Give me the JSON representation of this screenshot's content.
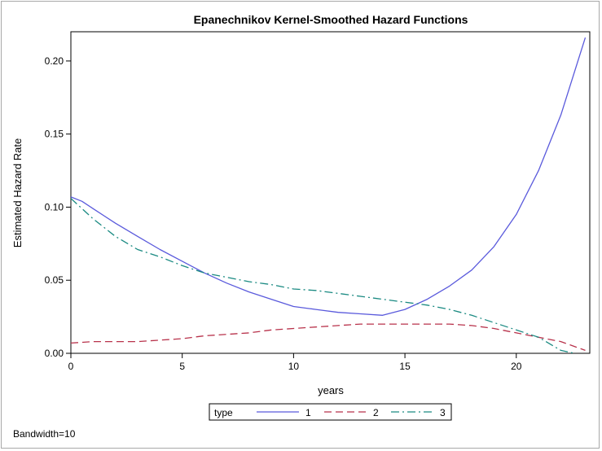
{
  "chart_data": {
    "type": "line",
    "title": "Epanechnikov Kernel-Smoothed Hazard Functions",
    "xlabel": "years",
    "ylabel": "Estimated Hazard Rate",
    "xlim": [
      0,
      23.3
    ],
    "ylim": [
      0,
      0.22
    ],
    "xticks": [
      0,
      5,
      10,
      15,
      20
    ],
    "xtick_labels": [
      "0",
      "5",
      "10",
      "15",
      "20"
    ],
    "yticks": [
      0,
      0.05,
      0.1,
      0.15,
      0.2
    ],
    "ytick_labels": [
      "0.00",
      "0.05",
      "0.10",
      "0.15",
      "0.20"
    ],
    "grid": false,
    "legend_position": "bottom-center",
    "legend_title": "type",
    "series": [
      {
        "name": "1",
        "color": "#5a5adc",
        "style": "solid",
        "x": [
          0,
          0.5,
          1,
          2,
          3,
          4,
          5,
          6,
          7,
          8,
          9,
          10,
          11,
          12,
          13,
          14,
          15,
          16,
          17,
          18,
          19,
          20,
          21,
          22,
          23.1
        ],
        "y": [
          0.107,
          0.104,
          0.099,
          0.089,
          0.08,
          0.071,
          0.063,
          0.055,
          0.048,
          0.042,
          0.037,
          0.032,
          0.03,
          0.028,
          0.027,
          0.026,
          0.03,
          0.037,
          0.046,
          0.057,
          0.073,
          0.095,
          0.125,
          0.163,
          0.216
        ]
      },
      {
        "name": "2",
        "color": "#b8324b",
        "style": "dashed",
        "x": [
          0,
          1,
          2,
          3,
          4,
          5,
          6,
          7,
          8,
          9,
          10,
          11,
          12,
          13,
          14,
          15,
          16,
          17,
          18,
          19,
          20,
          21,
          22,
          23.1
        ],
        "y": [
          0.007,
          0.008,
          0.008,
          0.008,
          0.009,
          0.01,
          0.012,
          0.013,
          0.014,
          0.016,
          0.017,
          0.018,
          0.019,
          0.02,
          0.02,
          0.02,
          0.02,
          0.02,
          0.019,
          0.017,
          0.014,
          0.011,
          0.008,
          0.002
        ]
      },
      {
        "name": "3",
        "color": "#1a8a82",
        "style": "dashdot",
        "x": [
          0,
          0.5,
          1,
          2,
          3,
          4,
          5,
          6,
          7,
          8,
          9,
          10,
          11,
          12,
          13,
          14,
          15,
          16,
          17,
          18,
          19,
          20,
          21,
          22,
          22.6
        ],
        "y": [
          0.106,
          0.099,
          0.092,
          0.08,
          0.071,
          0.066,
          0.06,
          0.055,
          0.052,
          0.049,
          0.047,
          0.044,
          0.043,
          0.041,
          0.039,
          0.037,
          0.035,
          0.033,
          0.03,
          0.026,
          0.021,
          0.016,
          0.011,
          0.002,
          0.0
        ]
      }
    ],
    "annotation": "Bandwidth=10"
  }
}
